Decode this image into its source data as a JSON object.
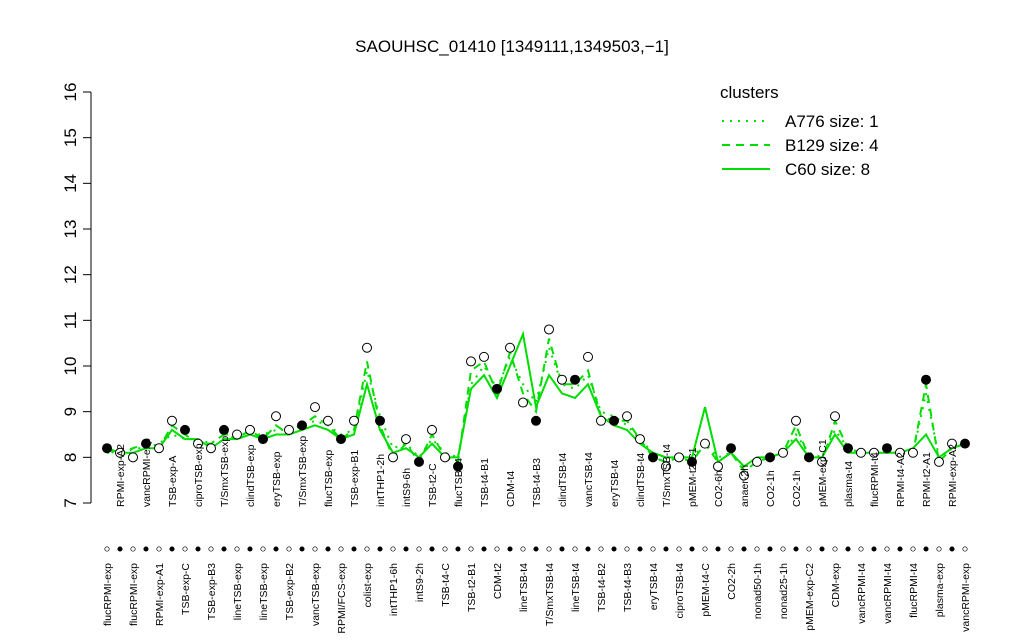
{
  "chart_data": {
    "type": "line",
    "title": "SAOUHSC_01410 [1349111,1349503,−1]",
    "ylim": [
      7,
      16
    ],
    "yticks": [
      7,
      8,
      9,
      10,
      11,
      12,
      13,
      14,
      15,
      16
    ],
    "legend_title": "clusters",
    "legend_position": "upper right",
    "color": "#00dd00",
    "categories": [
      "flucRPMI-exp",
      "RPMI-exp-A2",
      "flucRPMI-exp",
      "vancRPMI-exp",
      "RPMI-exp-A1",
      "TSB-exp-A",
      "TSB-exp-C",
      "ciproTSB-exp",
      "TSB-exp-B3",
      "T/SmxTSB-exp",
      "lineTSB-exp",
      "clindTSB-exp",
      "lineTSB-exp",
      "eryTSB-exp",
      "TSB-exp-B2",
      "T/SmxTSB-exp",
      "vancTSB-exp",
      "flucTSB-exp",
      "RPMI/FCS-exp",
      "TSB-exp-B1",
      "colist-exp",
      "intTHP1-2h",
      "intTHP1-6h",
      "intS9-6h",
      "intS9-2h",
      "TSB-t2-C",
      "TSB-t4-C",
      "flucTSB-t4",
      "TSB-t2-B1",
      "TSB-t4-B1",
      "CDM-t2",
      "CDM-t4",
      "lineTSB-t4",
      "TSB-t4-B3",
      "T/SmxTSB-t4",
      "clindTSB-t4",
      "lineTSB-t4",
      "vancTSB-t4",
      "TSB-t4-B2",
      "eryTSB-t4",
      "TSB-t4-B3",
      "clindTSB-t4",
      "eryTSB-t4",
      "T/SmxTSB-t4",
      "ciproTSB-t4",
      "pMEM-t2-C1",
      "pMEM-t4-C",
      "CO2-6h",
      "CO2-2h",
      "anaer-2h",
      "nonad50-1h",
      "CO2-1h",
      "nonad25-1h",
      "CO2-1h",
      "pMEM-exp-C2",
      "pMEM-exp-C1",
      "CDM-exp",
      "plasma-t4",
      "vancRPMI-t4",
      "flucRPMI-t4",
      "vancRPMI-t4",
      "RPMI-t4-A2",
      "flucRPMI-t4",
      "RPMI-t2-A1",
      "plasma-exp",
      "RPMI-exp-A2",
      "vancRPMI-exp"
    ],
    "values": [
      8.2,
      8.1,
      8.0,
      8.3,
      8.2,
      8.8,
      8.6,
      8.3,
      8.2,
      8.6,
      8.5,
      8.6,
      8.4,
      8.9,
      8.6,
      8.7,
      9.1,
      8.8,
      8.4,
      8.8,
      10.4,
      8.8,
      8.0,
      8.4,
      7.9,
      8.6,
      8.0,
      7.8,
      10.1,
      10.2,
      9.5,
      10.4,
      9.2,
      8.8,
      10.8,
      9.7,
      9.7,
      10.2,
      8.8,
      8.8,
      8.9,
      8.4,
      8.0,
      7.8,
      8.0,
      7.9,
      8.3,
      7.8,
      8.2,
      7.6,
      7.9,
      8.0,
      8.1,
      8.8,
      8.0,
      7.9,
      8.9,
      8.2,
      8.1,
      8.1,
      8.2,
      8.1,
      8.1,
      9.7,
      7.9,
      8.3,
      8.3
    ],
    "series": [
      {
        "name": "A776 size: 1",
        "style": "dotted",
        "values": [
          8.1,
          8.1,
          8.2,
          8.2,
          8.3,
          8.5,
          8.4,
          8.4,
          8.3,
          8.5,
          8.5,
          8.5,
          8.5,
          8.6,
          8.6,
          8.7,
          8.8,
          8.7,
          8.5,
          8.6,
          9.9,
          8.9,
          8.2,
          8.3,
          8.0,
          8.4,
          8.1,
          8.0,
          9.6,
          10.0,
          9.5,
          10.2,
          9.6,
          9.2,
          10.4,
          9.6,
          9.5,
          9.8,
          9.0,
          8.9,
          8.7,
          8.4,
          8.1,
          8.0,
          8.0,
          8.0,
          8.3,
          8.0,
          8.1,
          7.8,
          8.0,
          8.0,
          8.1,
          8.5,
          8.1,
          8.0,
          8.6,
          8.2,
          8.1,
          8.1,
          8.1,
          8.1,
          8.1,
          9.4,
          8.0,
          8.2,
          8.3
        ]
      },
      {
        "name": "B129 size: 4",
        "style": "dashed",
        "values": [
          8.2,
          8.0,
          8.2,
          8.3,
          8.2,
          8.7,
          8.5,
          8.3,
          8.3,
          8.5,
          8.4,
          8.6,
          8.4,
          8.7,
          8.5,
          8.7,
          8.9,
          8.7,
          8.4,
          8.6,
          10.1,
          8.7,
          8.0,
          8.3,
          7.9,
          8.5,
          8.0,
          7.9,
          9.9,
          10.1,
          9.4,
          10.3,
          9.4,
          9.0,
          10.6,
          9.6,
          9.6,
          9.9,
          8.9,
          8.8,
          8.8,
          8.4,
          8.0,
          7.9,
          8.0,
          7.9,
          8.3,
          7.9,
          8.1,
          7.7,
          7.9,
          8.0,
          8.1,
          8.7,
          8.0,
          7.9,
          8.8,
          8.2,
          8.1,
          8.1,
          8.2,
          8.1,
          8.1,
          9.6,
          7.9,
          8.2,
          8.3
        ]
      },
      {
        "name": "C60 size: 8",
        "style": "solid",
        "values": [
          8.2,
          8.1,
          8.1,
          8.2,
          8.2,
          8.6,
          8.4,
          8.4,
          8.2,
          8.4,
          8.4,
          8.5,
          8.4,
          8.5,
          8.5,
          8.6,
          8.7,
          8.6,
          8.4,
          8.5,
          9.6,
          8.6,
          8.1,
          8.2,
          8.0,
          8.3,
          8.0,
          8.0,
          9.5,
          9.8,
          9.3,
          10.0,
          10.7,
          9.1,
          9.8,
          9.4,
          9.3,
          9.6,
          8.9,
          8.7,
          8.6,
          8.3,
          8.1,
          8.0,
          8.0,
          8.0,
          9.1,
          7.9,
          8.1,
          7.8,
          8.0,
          8.0,
          8.1,
          8.4,
          8.0,
          8.0,
          8.5,
          8.1,
          8.1,
          8.1,
          8.1,
          8.1,
          8.2,
          8.5,
          8.0,
          8.2,
          8.3
        ]
      }
    ]
  }
}
